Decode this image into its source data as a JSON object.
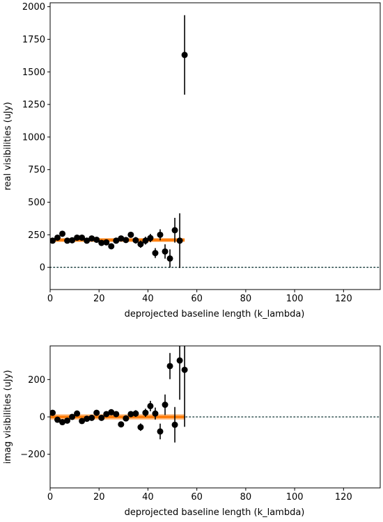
{
  "chart_data": [
    {
      "type": "scatter",
      "xlabel": "deprojected baseline length (k_lambda)",
      "ylabel": "real visibilities (uJy)",
      "xlim": [
        0,
        135
      ],
      "ylim": [
        -170,
        2030
      ],
      "xticks": [
        0,
        20,
        40,
        60,
        80,
        100,
        120
      ],
      "yticks": [
        0,
        250,
        500,
        750,
        1000,
        1250,
        1500,
        1750,
        2000
      ],
      "zero_line": {
        "y": 0,
        "style": "dotted",
        "color": "#2f4f4f"
      },
      "model": {
        "x": [
          0,
          55
        ],
        "y": [
          210,
          210
        ],
        "color": "#ff7f0e",
        "band": [
          195,
          225
        ]
      },
      "points": [
        {
          "x": 1,
          "y": 205,
          "err": 15
        },
        {
          "x": 3,
          "y": 228,
          "err": 18
        },
        {
          "x": 5,
          "y": 258,
          "err": 18
        },
        {
          "x": 7,
          "y": 205,
          "err": 18
        },
        {
          "x": 9,
          "y": 208,
          "err": 18
        },
        {
          "x": 11,
          "y": 228,
          "err": 18
        },
        {
          "x": 13,
          "y": 228,
          "err": 18
        },
        {
          "x": 15,
          "y": 205,
          "err": 18
        },
        {
          "x": 17,
          "y": 222,
          "err": 18
        },
        {
          "x": 19,
          "y": 212,
          "err": 18
        },
        {
          "x": 21,
          "y": 188,
          "err": 18
        },
        {
          "x": 23,
          "y": 192,
          "err": 18
        },
        {
          "x": 25,
          "y": 162,
          "err": 18
        },
        {
          "x": 27,
          "y": 205,
          "err": 18
        },
        {
          "x": 29,
          "y": 222,
          "err": 18
        },
        {
          "x": 31,
          "y": 210,
          "err": 18
        },
        {
          "x": 33,
          "y": 250,
          "err": 22
        },
        {
          "x": 35,
          "y": 208,
          "err": 25
        },
        {
          "x": 37,
          "y": 178,
          "err": 28
        },
        {
          "x": 39,
          "y": 205,
          "err": 30
        },
        {
          "x": 41,
          "y": 225,
          "err": 32
        },
        {
          "x": 43,
          "y": 110,
          "err": 38
        },
        {
          "x": 45,
          "y": 250,
          "err": 42
        },
        {
          "x": 47,
          "y": 122,
          "err": 55
        },
        {
          "x": 49,
          "y": 68,
          "err": 70
        },
        {
          "x": 51,
          "y": 285,
          "err": 95
        },
        {
          "x": 53,
          "y": 205,
          "err": 210
        },
        {
          "x": 55,
          "y": 1630,
          "err": 305
        }
      ]
    },
    {
      "type": "scatter",
      "xlabel": "deprojected baseline length (k_lambda)",
      "ylabel": "imag visibilities (uJy)",
      "xlim": [
        0,
        135
      ],
      "ylim": [
        -380,
        380
      ],
      "xticks": [
        0,
        20,
        40,
        60,
        80,
        100,
        120
      ],
      "yticks": [
        -200,
        0,
        200
      ],
      "zero_line": {
        "y": 0,
        "style": "dotted",
        "color": "#2f4f4f"
      },
      "model": {
        "x": [
          0,
          55
        ],
        "y": [
          0,
          0
        ],
        "color": "#ff7f0e",
        "band": [
          -15,
          15
        ]
      },
      "points": [
        {
          "x": 1,
          "y": 22,
          "err": 12
        },
        {
          "x": 3,
          "y": -15,
          "err": 12
        },
        {
          "x": 5,
          "y": -28,
          "err": 12
        },
        {
          "x": 7,
          "y": -20,
          "err": 12
        },
        {
          "x": 9,
          "y": 0,
          "err": 12
        },
        {
          "x": 11,
          "y": 18,
          "err": 12
        },
        {
          "x": 13,
          "y": -22,
          "err": 12
        },
        {
          "x": 15,
          "y": -10,
          "err": 12
        },
        {
          "x": 17,
          "y": -5,
          "err": 12
        },
        {
          "x": 19,
          "y": 22,
          "err": 12
        },
        {
          "x": 21,
          "y": -5,
          "err": 12
        },
        {
          "x": 23,
          "y": 15,
          "err": 12
        },
        {
          "x": 25,
          "y": 25,
          "err": 12
        },
        {
          "x": 27,
          "y": 15,
          "err": 12
        },
        {
          "x": 29,
          "y": -40,
          "err": 14
        },
        {
          "x": 31,
          "y": -8,
          "err": 14
        },
        {
          "x": 33,
          "y": 15,
          "err": 16
        },
        {
          "x": 35,
          "y": 18,
          "err": 18
        },
        {
          "x": 37,
          "y": -55,
          "err": 20
        },
        {
          "x": 39,
          "y": 22,
          "err": 22
        },
        {
          "x": 41,
          "y": 58,
          "err": 28
        },
        {
          "x": 43,
          "y": 18,
          "err": 32
        },
        {
          "x": 45,
          "y": -78,
          "err": 42
        },
        {
          "x": 47,
          "y": 65,
          "err": 55
        },
        {
          "x": 49,
          "y": 272,
          "err": 70
        },
        {
          "x": 51,
          "y": -42,
          "err": 95
        },
        {
          "x": 53,
          "y": 302,
          "err": 210
        },
        {
          "x": 55,
          "y": 252,
          "err": 305
        }
      ]
    }
  ]
}
